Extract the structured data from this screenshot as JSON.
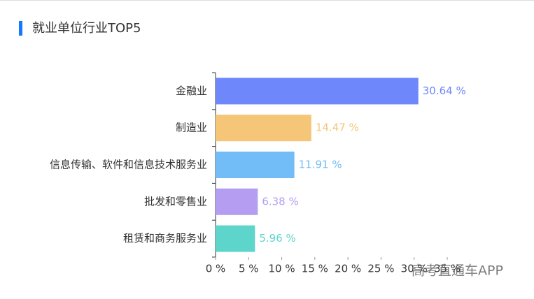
{
  "chart_data": {
    "type": "barh",
    "title": "就业单位行业TOP5",
    "categories": [
      "金融业",
      "制造业",
      "信息传输、软件和信息技术服务业",
      "批发和零售业",
      "租赁和商务服务业"
    ],
    "values": [
      30.64,
      14.47,
      11.91,
      6.38,
      5.96
    ],
    "value_labels": [
      "30.64 %",
      "14.47 %",
      "11.91 %",
      "6.38 %",
      "5.96 %"
    ],
    "colors": [
      "#6e88fb",
      "#f5c677",
      "#72bcf7",
      "#b59ef1",
      "#5dd5cb"
    ],
    "xlim": [
      0,
      35
    ],
    "xticks": [
      {
        "value": 0,
        "label": "0 %"
      },
      {
        "value": 5,
        "label": "5 %"
      },
      {
        "value": 10,
        "label": "10 %"
      },
      {
        "value": 15,
        "label": "15 %"
      },
      {
        "value": 20,
        "label": "20 %"
      },
      {
        "value": 25,
        "label": "25 %"
      },
      {
        "value": 30,
        "label": "30 %"
      },
      {
        "value": 35,
        "label": "35 %"
      }
    ],
    "watermark": "高考直通车APP"
  }
}
